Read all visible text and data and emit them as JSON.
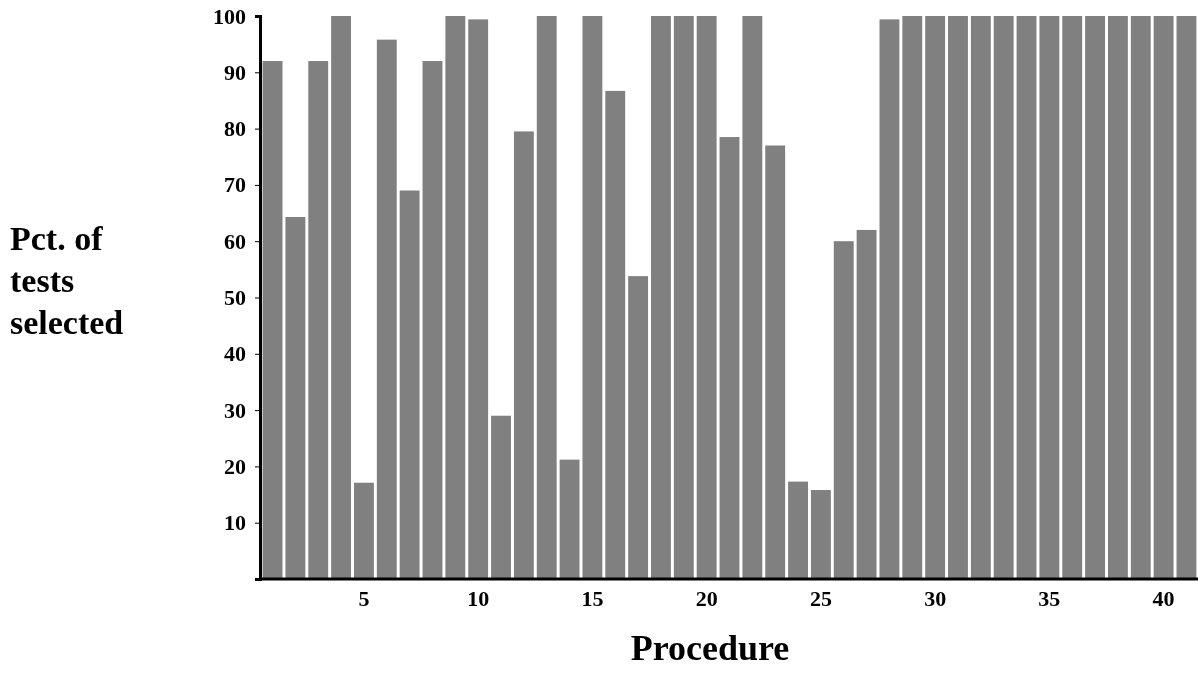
{
  "chart_data": {
    "type": "bar",
    "xlabel": "Procedure",
    "ylabel": "Pct. of tests selected",
    "categories": [
      null,
      null,
      null,
      null,
      "5",
      null,
      null,
      null,
      null,
      "10",
      null,
      null,
      null,
      null,
      "15",
      null,
      null,
      null,
      null,
      "20",
      null,
      null,
      null,
      null,
      "25",
      null,
      null,
      null,
      null,
      "30",
      null,
      null,
      null,
      null,
      "35",
      null,
      null,
      null,
      null,
      "40",
      null
    ],
    "values": [
      92,
      64.3,
      92,
      100,
      17.1,
      95.8,
      69,
      92,
      100,
      99.4,
      29,
      79.5,
      100,
      21.2,
      100,
      86.7,
      53.8,
      100,
      100,
      100,
      78.5,
      100,
      77,
      17.3,
      15.8,
      60,
      62,
      99.4,
      100,
      100,
      100,
      100,
      100,
      100,
      100,
      100,
      100,
      100,
      100,
      100,
      100
    ],
    "color": "#808080",
    "ylim": [
      0,
      100
    ],
    "yticks": [
      10,
      20,
      30,
      40,
      50,
      60,
      70,
      80,
      90,
      100
    ],
    "grid": false
  }
}
